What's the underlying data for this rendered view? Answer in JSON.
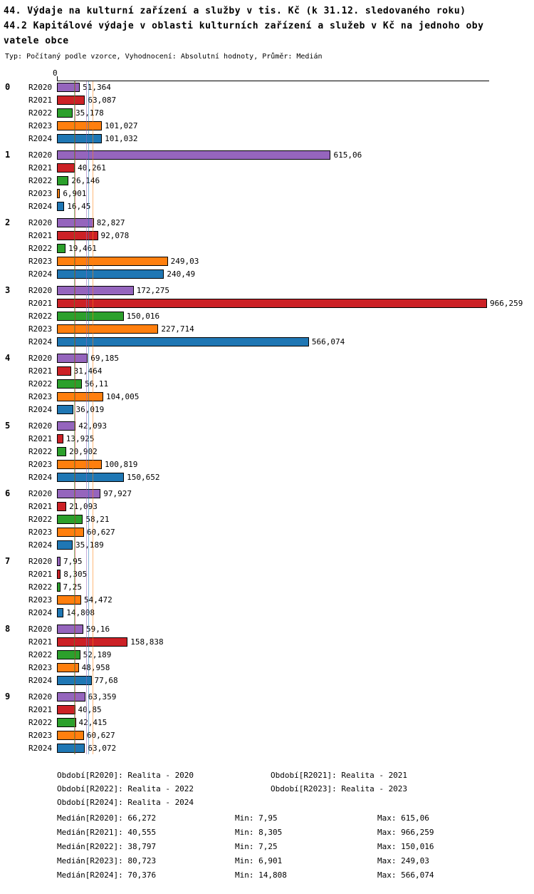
{
  "header": {
    "title1": "44. Výdaje na kulturní zařízení a služby v tis. Kč (k 31.12. sledovaného roku)",
    "title2": "44.2 Kapitálové výdaje v oblasti kulturních zařízení a služeb v Kč na jednoho oby",
    "title2_cont": "vatele obce",
    "subtitle": "Typ: Počítaný podle vzorce, Vyhodnocení: Absolutní hodnoty, Průměr: Medián"
  },
  "chart_data": {
    "type": "bar",
    "orientation": "horizontal",
    "axis_zero": "0",
    "xlim": [
      0,
      966.259
    ],
    "grid": "off",
    "series": [
      {
        "name": "R2020",
        "color": "#9565bd",
        "median": 66.272,
        "period": "Realita - 2020"
      },
      {
        "name": "R2021",
        "color": "#cc2126",
        "median": 40.555,
        "period": "Realita - 2021"
      },
      {
        "name": "R2022",
        "color": "#2ca02c",
        "median": 38.797,
        "period": "Realita - 2022"
      },
      {
        "name": "R2023",
        "color": "#ff7f0e",
        "median": 80.723,
        "period": "Realita - 2023"
      },
      {
        "name": "R2024",
        "color": "#1f77b4",
        "median": 70.376,
        "period": "Realita - 2024"
      }
    ],
    "groups": [
      {
        "label": "0",
        "values": [
          51.364,
          63.087,
          35.178,
          101.027,
          101.032
        ],
        "display": [
          "51,364",
          "63,087",
          "35,178",
          "101,027",
          "101,032"
        ]
      },
      {
        "label": "1",
        "values": [
          615.06,
          40.261,
          26.146,
          6.901,
          16.45
        ],
        "display": [
          "615,06",
          "40,261",
          "26,146",
          "6,901",
          "16,45"
        ]
      },
      {
        "label": "2",
        "values": [
          82.827,
          92.078,
          19.461,
          249.03,
          240.49
        ],
        "display": [
          "82,827",
          "92,078",
          "19,461",
          "249,03",
          "240,49"
        ]
      },
      {
        "label": "3",
        "values": [
          172.275,
          966.259,
          150.016,
          227.714,
          566.074
        ],
        "display": [
          "172,275",
          "966,259",
          "150,016",
          "227,714",
          "566,074"
        ]
      },
      {
        "label": "4",
        "values": [
          69.185,
          31.464,
          56.11,
          104.005,
          36.019
        ],
        "display": [
          "69,185",
          "31,464",
          "56,11",
          "104,005",
          "36,019"
        ]
      },
      {
        "label": "5",
        "values": [
          42.093,
          13.925,
          20.902,
          100.819,
          150.652
        ],
        "display": [
          "42,093",
          "13,925",
          "20,902",
          "100,819",
          "150,652"
        ]
      },
      {
        "label": "6",
        "values": [
          97.927,
          21.093,
          58.21,
          60.627,
          35.189
        ],
        "display": [
          "97,927",
          "21,093",
          "58,21",
          "60,627",
          "35,189"
        ]
      },
      {
        "label": "7",
        "values": [
          7.95,
          8.305,
          7.25,
          54.472,
          14.808
        ],
        "display": [
          "7,95",
          "8,305",
          "7,25",
          "54,472",
          "14,808"
        ]
      },
      {
        "label": "8",
        "values": [
          59.16,
          158.838,
          52.189,
          48.958,
          77.68
        ],
        "display": [
          "59,16",
          "158,838",
          "52,189",
          "48,958",
          "77,68"
        ]
      },
      {
        "label": "9",
        "values": [
          63.359,
          40.85,
          42.415,
          60.627,
          63.072
        ],
        "display": [
          "63,359",
          "40,85",
          "42,415",
          "60,627",
          "63,072"
        ]
      }
    ]
  },
  "footer": {
    "periods": [
      "Období[R2020]: Realita - 2020",
      "Období[R2021]: Realita - 2021",
      "Období[R2022]: Realita - 2022",
      "Období[R2023]: Realita - 2023",
      "Období[R2024]: Realita - 2024"
    ],
    "stats": [
      {
        "median": "Medián[R2020]: 66,272",
        "min": "Min: 7,95",
        "max": "Max: 615,06"
      },
      {
        "median": "Medián[R2021]: 40,555",
        "min": "Min: 8,305",
        "max": "Max: 966,259"
      },
      {
        "median": "Medián[R2022]: 38,797",
        "min": "Min: 7,25",
        "max": "Max: 150,016"
      },
      {
        "median": "Medián[R2023]: 80,723",
        "min": "Min: 6,901",
        "max": "Max: 249,03"
      },
      {
        "median": "Medián[R2024]: 70,376",
        "min": "Min: 14,808",
        "max": "Max: 566,074"
      }
    ]
  }
}
